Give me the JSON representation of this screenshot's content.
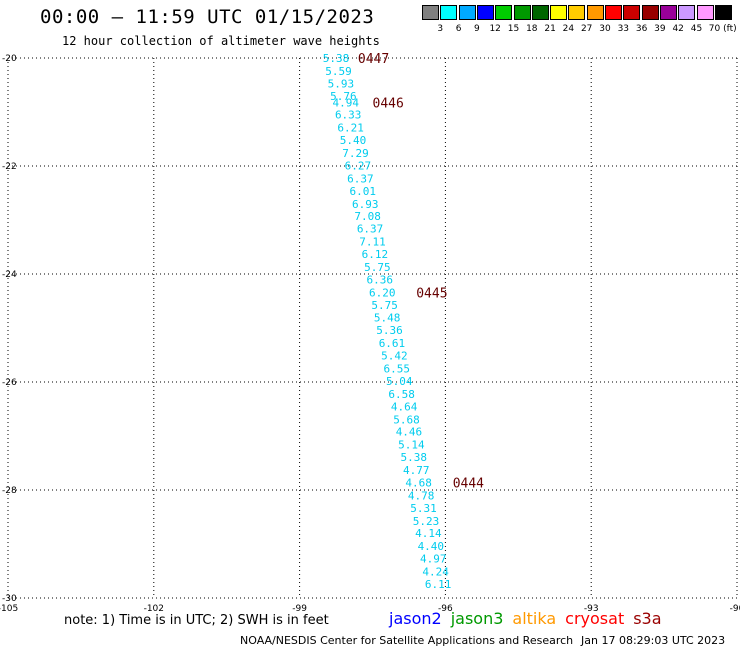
{
  "header": {
    "title": "00:00 — 11:59 UTC 01/15/2023",
    "subtitle": "12 hour collection of altimeter wave heights"
  },
  "colorbar": {
    "labels": [
      "3",
      "6",
      "9",
      "12",
      "15",
      "18",
      "21",
      "24",
      "27",
      "30",
      "33",
      "36",
      "39",
      "42",
      "45",
      "70 (ft)"
    ],
    "colors": [
      "#808080",
      "#00ffff",
      "#00aaff",
      "#0000ff",
      "#00cc00",
      "#009900",
      "#006600",
      "#ffff00",
      "#ffcc00",
      "#ff9900",
      "#ff0000",
      "#cc0000",
      "#990000",
      "#990099",
      "#cc99ff",
      "#ff99ff",
      "#000000"
    ]
  },
  "chart_data": {
    "type": "scatter",
    "xlim": [
      -105,
      -90
    ],
    "ylim": [
      -30,
      -20
    ],
    "xticks": [
      -105,
      -102,
      -99,
      -96,
      -93,
      -90
    ],
    "yticks": [
      -20,
      -22,
      -24,
      -26,
      -28,
      -30
    ],
    "grid": true,
    "value_color": "#00ccee",
    "pass_color": "#660000",
    "points": [
      {
        "lon": -98.25,
        "lat": -20.0,
        "swh": "5.38"
      },
      {
        "lon": -98.2,
        "lat": -20.24,
        "swh": "5.59"
      },
      {
        "lon": -98.15,
        "lat": -20.47,
        "swh": "5.93"
      },
      {
        "lon": -98.1,
        "lat": -20.7,
        "swh": "5.76"
      },
      {
        "lon": -98.05,
        "lat": -20.82,
        "swh": "4.94"
      },
      {
        "lon": -98.0,
        "lat": -21.05,
        "swh": "6.33"
      },
      {
        "lon": -97.95,
        "lat": -21.29,
        "swh": "6.21"
      },
      {
        "lon": -97.9,
        "lat": -21.52,
        "swh": "5.40"
      },
      {
        "lon": -97.85,
        "lat": -21.76,
        "swh": "7.29"
      },
      {
        "lon": -97.8,
        "lat": -21.99,
        "swh": "6.27"
      },
      {
        "lon": -97.75,
        "lat": -22.23,
        "swh": "6.37"
      },
      {
        "lon": -97.7,
        "lat": -22.46,
        "swh": "6.01"
      },
      {
        "lon": -97.65,
        "lat": -22.7,
        "swh": "6.93"
      },
      {
        "lon": -97.6,
        "lat": -22.93,
        "swh": "7.08"
      },
      {
        "lon": -97.55,
        "lat": -23.16,
        "swh": "6.37"
      },
      {
        "lon": -97.5,
        "lat": -23.4,
        "swh": "7.11"
      },
      {
        "lon": -97.45,
        "lat": -23.63,
        "swh": "6.12"
      },
      {
        "lon": -97.4,
        "lat": -23.87,
        "swh": "5.75"
      },
      {
        "lon": -97.35,
        "lat": -24.1,
        "swh": "6.36"
      },
      {
        "lon": -97.3,
        "lat": -24.34,
        "swh": "6.20"
      },
      {
        "lon": -97.25,
        "lat": -24.57,
        "swh": "5.75"
      },
      {
        "lon": -97.2,
        "lat": -24.81,
        "swh": "5.48"
      },
      {
        "lon": -97.15,
        "lat": -25.04,
        "swh": "5.36"
      },
      {
        "lon": -97.1,
        "lat": -25.28,
        "swh": "6.61"
      },
      {
        "lon": -97.05,
        "lat": -25.51,
        "swh": "5.42"
      },
      {
        "lon": -97.0,
        "lat": -25.75,
        "swh": "6.55"
      },
      {
        "lon": -96.95,
        "lat": -25.98,
        "swh": "5.04"
      },
      {
        "lon": -96.9,
        "lat": -26.22,
        "swh": "6.58"
      },
      {
        "lon": -96.85,
        "lat": -26.45,
        "swh": "4.64"
      },
      {
        "lon": -96.8,
        "lat": -26.69,
        "swh": "5.68"
      },
      {
        "lon": -96.75,
        "lat": -26.92,
        "swh": "4.46"
      },
      {
        "lon": -96.7,
        "lat": -27.16,
        "swh": "5.14"
      },
      {
        "lon": -96.65,
        "lat": -27.39,
        "swh": "5.38"
      },
      {
        "lon": -96.6,
        "lat": -27.63,
        "swh": "4.77"
      },
      {
        "lon": -96.55,
        "lat": -27.86,
        "swh": "4.68"
      },
      {
        "lon": -96.5,
        "lat": -28.1,
        "swh": "4.78"
      },
      {
        "lon": -96.45,
        "lat": -28.33,
        "swh": "5.31"
      },
      {
        "lon": -96.4,
        "lat": -28.57,
        "swh": "5.23"
      },
      {
        "lon": -96.35,
        "lat": -28.8,
        "swh": "4.14"
      },
      {
        "lon": -96.3,
        "lat": -29.04,
        "swh": "4.40"
      },
      {
        "lon": -96.25,
        "lat": -29.27,
        "swh": "4.97"
      },
      {
        "lon": -96.2,
        "lat": -29.51,
        "swh": "4.24"
      },
      {
        "lon": -96.15,
        "lat": -29.74,
        "swh": "6.11"
      }
    ],
    "pass_labels": [
      {
        "lon": -97.8,
        "lat": -20.0,
        "text": "0447"
      },
      {
        "lon": -97.5,
        "lat": -20.82,
        "text": "0446"
      },
      {
        "lon": -96.6,
        "lat": -24.34,
        "text": "0445"
      },
      {
        "lon": -95.85,
        "lat": -27.86,
        "text": "0444"
      }
    ]
  },
  "footer": {
    "note": "note: 1) Time is in UTC; 2) SWH is in feet",
    "satellites": [
      {
        "name": "jason2",
        "color": "#0000ff"
      },
      {
        "name": "jason3",
        "color": "#009900"
      },
      {
        "name": "altika",
        "color": "#ff9900"
      },
      {
        "name": "cryosat",
        "color": "#ff0000"
      },
      {
        "name": "s3a",
        "color": "#990000"
      }
    ],
    "credit": "NOAA/NESDIS Center for Satellite Applications and Research",
    "timestamp": "Jan 17 08:29:03 UTC 2023"
  }
}
